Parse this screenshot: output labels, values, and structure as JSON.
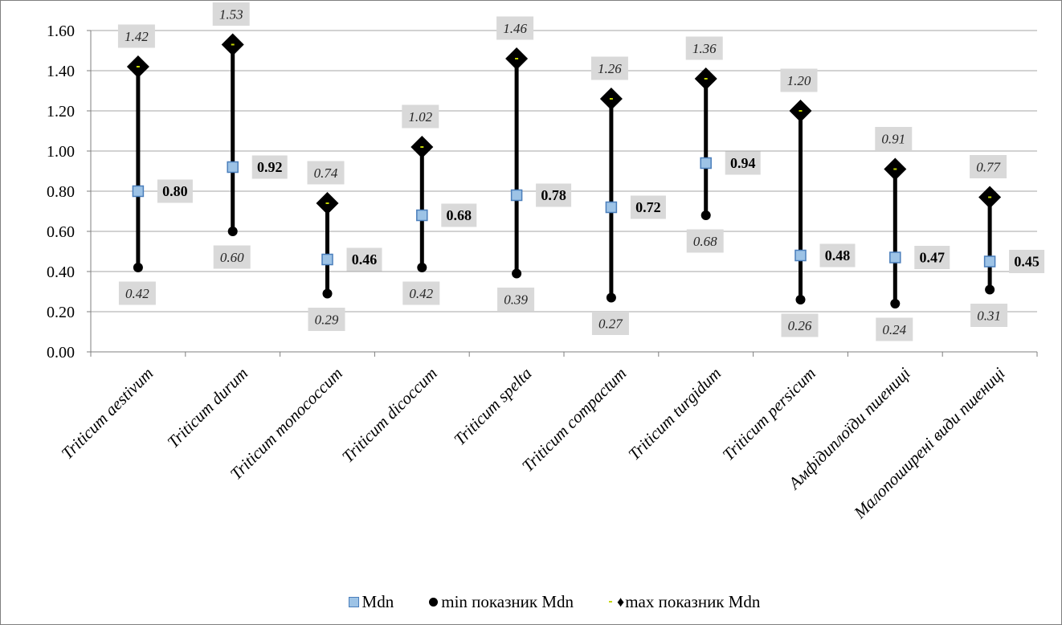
{
  "chart_data": {
    "type": "scatter",
    "categories": [
      "Triticum aestivum",
      "Triticum durum",
      "Triticum monococcum",
      "Triticum dicoccum",
      "Triticum spelta",
      "Triticum compactum",
      "Triticum turgidum",
      "Triticum persicum",
      "Амфідиплоїди пшениці",
      "Малопоширені види пшениці"
    ],
    "series": [
      {
        "name": "Mdn",
        "values": [
          0.8,
          0.92,
          0.46,
          0.68,
          0.78,
          0.72,
          0.94,
          0.48,
          0.47,
          0.45
        ]
      },
      {
        "name": "min показник Mdn",
        "values": [
          0.42,
          0.6,
          0.29,
          0.42,
          0.39,
          0.27,
          0.68,
          0.26,
          0.24,
          0.31
        ]
      },
      {
        "name": "max показник Mdn",
        "values": [
          1.42,
          1.53,
          0.74,
          1.02,
          1.46,
          1.26,
          1.36,
          1.2,
          0.91,
          0.77
        ]
      }
    ],
    "y_ticks": [
      "0.00",
      "0.20",
      "0.40",
      "0.60",
      "0.80",
      "1.00",
      "1.20",
      "1.40",
      "1.60"
    ],
    "ylim": [
      0,
      1.6
    ],
    "grid": true,
    "legend_position": "bottom",
    "title": "",
    "xlabel": "",
    "ylabel": "",
    "colors": {
      "median_fill": "#9dc3e6",
      "median_stroke": "#4a7ebb",
      "marker": "#000000",
      "max_dash": "#c4d600",
      "label_bg": "#d9d9d9",
      "grid": "#a6a6a6"
    }
  },
  "legend": {
    "median": "Mdn",
    "min": "min показник Mdn",
    "max": "max показник Mdn",
    "max_symbol": "♦"
  }
}
